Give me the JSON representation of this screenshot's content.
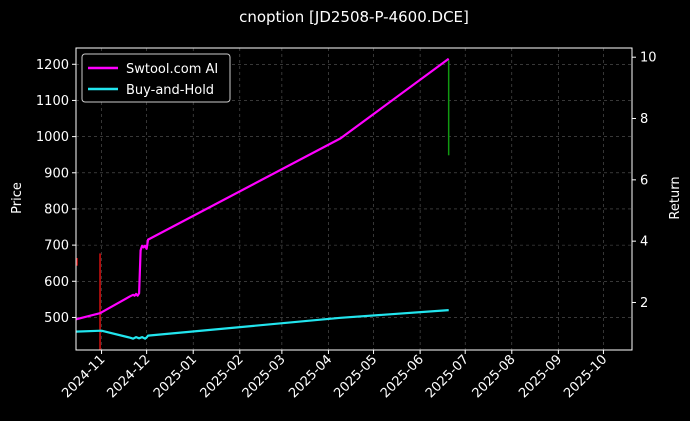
{
  "chart_data": {
    "type": "line",
    "title": "cnoption [JD2508-P-4600.DCE]",
    "ylabel": "Price",
    "y2label": "Return",
    "xlim": [
      "2024-10-15",
      "2025-10-20"
    ],
    "ylim": [
      410,
      1245
    ],
    "y2lim": [
      0.45,
      10.3
    ],
    "x_ticks": [
      "2024-11",
      "2024-12",
      "2025-01",
      "2025-02",
      "2025-03",
      "2025-04",
      "2025-05",
      "2025-06",
      "2025-07",
      "2025-08",
      "2025-09",
      "2025-10"
    ],
    "y_ticks": [
      500,
      600,
      700,
      800,
      900,
      1000,
      1100,
      1200
    ],
    "y2_ticks": [
      2,
      4,
      6,
      8,
      10
    ],
    "grid": true,
    "legend_position": "top-left",
    "background": "#000000",
    "series": [
      {
        "name": "Swtool.com AI",
        "axis": "right",
        "color": "#ff00ff",
        "x": [
          "2024-10-15",
          "2024-10-31",
          "2024-11-20",
          "2024-11-22",
          "2024-11-23",
          "2024-11-24",
          "2024-11-25",
          "2024-11-26",
          "2024-11-27",
          "2024-11-28",
          "2024-11-29",
          "2024-11-30",
          "2024-12-01",
          "2024-12-02",
          "2025-04-09",
          "2025-06-20"
        ],
        "values": [
          1.45,
          1.65,
          2.2,
          2.25,
          2.22,
          2.28,
          2.22,
          2.3,
          3.7,
          3.85,
          3.8,
          3.85,
          3.75,
          4.05,
          7.35,
          9.95
        ]
      },
      {
        "name": "Buy-and-Hold",
        "axis": "right",
        "color": "#22e5ee",
        "x": [
          "2024-10-15",
          "2024-11-01",
          "2024-11-20",
          "2024-11-22",
          "2024-11-24",
          "2024-11-26",
          "2024-11-28",
          "2024-11-30",
          "2024-12-01",
          "2024-12-02",
          "2025-04-09",
          "2025-06-20"
        ],
        "values": [
          1.05,
          1.08,
          0.85,
          0.82,
          0.87,
          0.83,
          0.87,
          0.82,
          0.86,
          0.92,
          1.5,
          1.75
        ]
      }
    ],
    "signals": [
      {
        "date": "2024-10-15",
        "low": 3.2,
        "high": 3.45,
        "color": "#dd1111"
      },
      {
        "date": "2024-10-31",
        "low": 0.45,
        "high": 3.6,
        "color": "#dd1111"
      },
      {
        "date": "2025-06-20",
        "low": 6.8,
        "high": 9.9,
        "color": "#119911"
      }
    ]
  }
}
